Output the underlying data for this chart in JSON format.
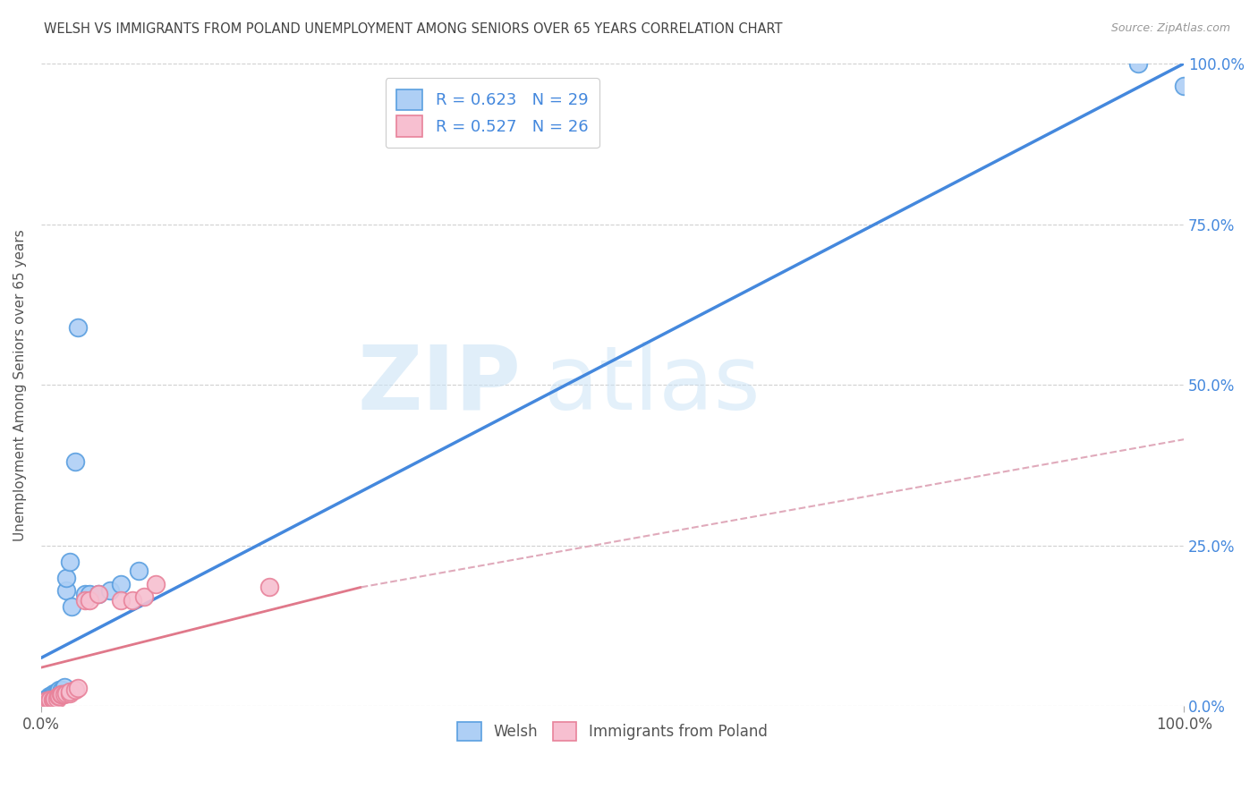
{
  "title": "WELSH VS IMMIGRANTS FROM POLAND UNEMPLOYMENT AMONG SENIORS OVER 65 YEARS CORRELATION CHART",
  "source": "Source: ZipAtlas.com",
  "ylabel": "Unemployment Among Seniors over 65 years",
  "xlim": [
    0,
    1.0
  ],
  "ylim": [
    0,
    1.0
  ],
  "ytick_labels": [
    "0.0%",
    "25.0%",
    "50.0%",
    "75.0%",
    "100.0%"
  ],
  "ytick_values": [
    0.0,
    0.25,
    0.5,
    0.75,
    1.0
  ],
  "watermark_zip": "ZIP",
  "watermark_atlas": "atlas",
  "legend_entry1_label": "R = 0.623   N = 29",
  "legend_entry2_label": "R = 0.527   N = 26",
  "welsh_color": "#aecff5",
  "welsh_edge_color": "#5a9fe0",
  "poland_color": "#f7bfd0",
  "poland_edge_color": "#e8829a",
  "line1_color": "#4488dd",
  "line2_solid_color": "#e0788a",
  "line2_dash_color": "#e0aabb",
  "welsh_x": [
    0.003,
    0.005,
    0.007,
    0.008,
    0.009,
    0.01,
    0.01,
    0.011,
    0.012,
    0.013,
    0.014,
    0.015,
    0.016,
    0.018,
    0.02,
    0.022,
    0.022,
    0.025,
    0.027,
    0.03,
    0.032,
    0.038,
    0.042,
    0.05,
    0.06,
    0.07,
    0.085,
    0.96,
    1.0
  ],
  "welsh_y": [
    0.01,
    0.012,
    0.015,
    0.014,
    0.014,
    0.016,
    0.018,
    0.02,
    0.018,
    0.015,
    0.022,
    0.02,
    0.025,
    0.025,
    0.03,
    0.18,
    0.2,
    0.225,
    0.155,
    0.38,
    0.59,
    0.175,
    0.175,
    0.175,
    0.18,
    0.19,
    0.21,
    1.0,
    0.965
  ],
  "poland_x": [
    0.003,
    0.005,
    0.007,
    0.008,
    0.01,
    0.011,
    0.012,
    0.014,
    0.015,
    0.016,
    0.017,
    0.018,
    0.02,
    0.022,
    0.025,
    0.025,
    0.03,
    0.032,
    0.038,
    0.042,
    0.05,
    0.07,
    0.08,
    0.09,
    0.1,
    0.2
  ],
  "poland_y": [
    0.005,
    0.008,
    0.008,
    0.01,
    0.01,
    0.01,
    0.012,
    0.012,
    0.015,
    0.015,
    0.018,
    0.018,
    0.018,
    0.02,
    0.02,
    0.022,
    0.025,
    0.028,
    0.165,
    0.165,
    0.175,
    0.165,
    0.165,
    0.17,
    0.19,
    0.185
  ],
  "welsh_line_x": [
    0.0,
    1.0
  ],
  "welsh_line_y": [
    0.075,
    1.0
  ],
  "poland_solid_line_x": [
    0.0,
    0.28
  ],
  "poland_solid_line_y": [
    0.06,
    0.185
  ],
  "poland_dash_line_x": [
    0.28,
    1.0
  ],
  "poland_dash_line_y": [
    0.185,
    0.415
  ],
  "bg_color": "#ffffff",
  "grid_color": "#d0d0d0"
}
